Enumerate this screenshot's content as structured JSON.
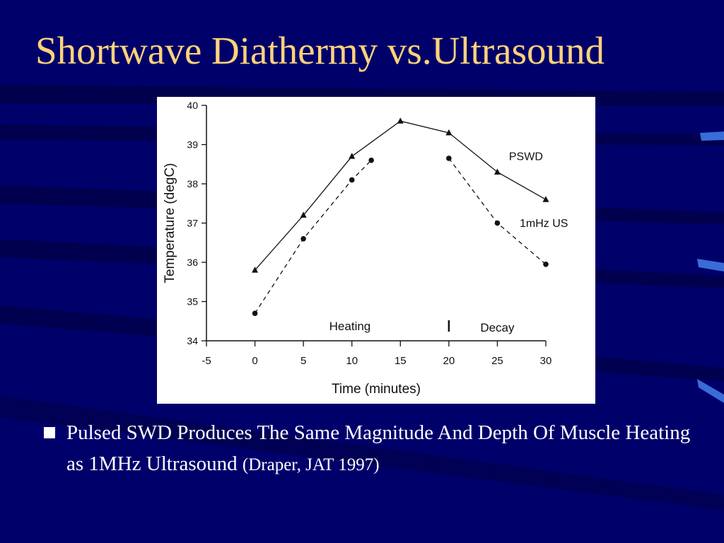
{
  "colors": {
    "background": "#00006b",
    "title": "#ffd37a",
    "text": "#ffffff",
    "bullet_marker": "#ffffff",
    "stripe_dark": "#000033",
    "stripe_accent": "#3a6cd8"
  },
  "slide": {
    "title": "Shortwave Diathermy vs.Ultrasound",
    "bullet": {
      "text": "Pulsed SWD Produces The Same Magnitude And Depth Of Muscle Heating as 1MHz Ultrasound",
      "citation": "(Draper, JAT 1997)"
    }
  },
  "chart_data": {
    "type": "line",
    "title": "",
    "xlabel": "Time (minutes)",
    "ylabel": "Temperature (degC)",
    "xlim": [
      -5,
      30
    ],
    "ylim": [
      34,
      40
    ],
    "xticks": [
      -5,
      0,
      5,
      10,
      15,
      20,
      25,
      30
    ],
    "yticks": [
      34,
      35,
      36,
      37,
      38,
      39,
      40
    ],
    "grid": false,
    "phase_labels": [
      "Heating",
      "Decay"
    ],
    "phase_divider_x": 20,
    "series": [
      {
        "name": "PSWD",
        "style": "solid",
        "marker": "triangle",
        "color": "#111111",
        "segments": [
          {
            "x": [
              0,
              5,
              10,
              15,
              20,
              25,
              30
            ],
            "y": [
              35.8,
              37.2,
              38.7,
              39.6,
              39.3,
              38.3,
              37.6
            ]
          }
        ]
      },
      {
        "name": "1mHz US",
        "style": "dashed",
        "marker": "circle",
        "color": "#111111",
        "segments": [
          {
            "x": [
              0,
              5,
              10,
              12
            ],
            "y": [
              34.7,
              36.6,
              38.1,
              38.6
            ]
          },
          {
            "x": [
              20,
              25,
              30
            ],
            "y": [
              38.65,
              37.0,
              35.95
            ]
          }
        ]
      }
    ]
  }
}
